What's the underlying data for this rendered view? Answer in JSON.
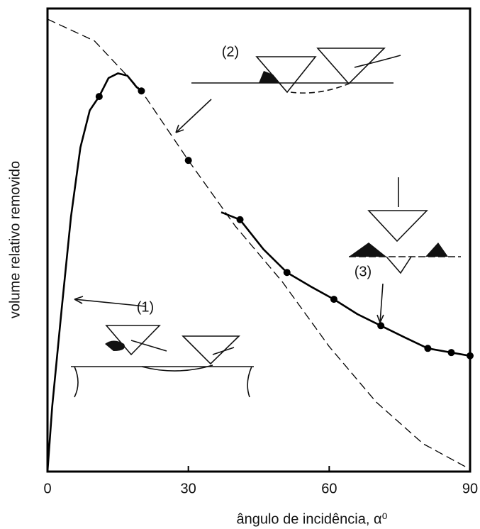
{
  "chart_data": {
    "type": "line",
    "xlabel": "ângulo de incidência, α⁰",
    "ylabel": "volume relativo removido",
    "xlim": [
      0,
      90
    ],
    "xticks": [
      0,
      30,
      60,
      90
    ],
    "ylim": [
      0,
      100
    ],
    "annotations": [
      "(1)",
      "(2)",
      "(3)"
    ],
    "series": [
      {
        "style": "solid",
        "color": "#000000",
        "x": [
          0,
          1,
          3,
          5,
          7,
          9,
          11,
          13,
          15,
          17,
          19,
          20,
          30,
          37,
          41,
          46,
          51,
          56,
          61,
          66,
          71,
          76,
          81,
          86,
          90
        ],
        "values": [
          0,
          14,
          35,
          55,
          70,
          78,
          81,
          85,
          86,
          85.5,
          83,
          82.2,
          null,
          56,
          54.4,
          48,
          43,
          40,
          37.2,
          34,
          31.5,
          29,
          26.6,
          25.7,
          25
        ]
      },
      {
        "style": "dashed",
        "color": "#000000",
        "x": [
          0,
          10,
          20,
          30,
          40,
          50,
          60,
          70,
          80,
          90
        ],
        "values": [
          97.7,
          93,
          82.2,
          67.2,
          53,
          41,
          27,
          15,
          6,
          0.5
        ]
      },
      {
        "style": "markers",
        "color": "#000000",
        "x": [
          11,
          20,
          30,
          41,
          51,
          61,
          71,
          81,
          86,
          90
        ],
        "values": [
          81,
          82.2,
          67.2,
          54.4,
          43,
          37.2,
          31.5,
          26.6,
          25.7,
          25
        ]
      }
    ]
  }
}
